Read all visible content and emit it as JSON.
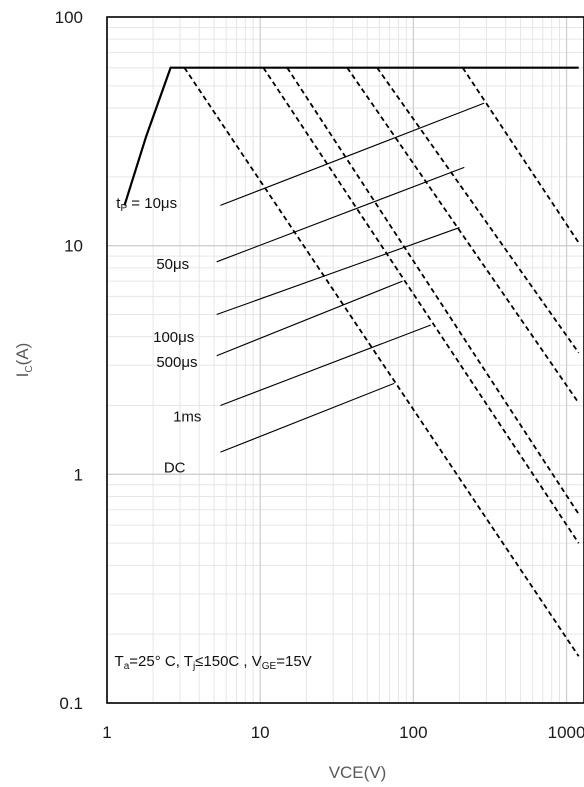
{
  "chart_data": {
    "type": "line",
    "xscale": "log",
    "yscale": "log",
    "xlim": [
      1,
      1300
    ],
    "ylim": [
      0.1,
      100
    ],
    "grid": true,
    "xlabel": "VCE(V)",
    "ylabel": {
      "main": "I",
      "sub": "C",
      "rest": "(A)"
    },
    "x_ticks": [
      {
        "value": 1,
        "label": "1"
      },
      {
        "value": 10,
        "label": "10"
      },
      {
        "value": 100,
        "label": "100"
      },
      {
        "value": 1000,
        "label": "1000"
      }
    ],
    "y_ticks": [
      {
        "value": 0.1,
        "label": "0.1"
      },
      {
        "value": 1,
        "label": "1"
      },
      {
        "value": 10,
        "label": "10"
      },
      {
        "value": 100,
        "label": "100"
      }
    ],
    "envelope": {
      "style": "solid",
      "points": [
        [
          1.3,
          15
        ],
        [
          1.8,
          30
        ],
        [
          2.6,
          60
        ],
        [
          1200,
          60
        ]
      ]
    },
    "series": [
      {
        "style": "dashed",
        "points": [
          [
            3.2,
            60
          ],
          [
            1200,
            0.16
          ]
        ]
      },
      {
        "style": "dashed",
        "points": [
          [
            10.5,
            60
          ],
          [
            1200,
            0.5
          ]
        ]
      },
      {
        "style": "dashed",
        "points": [
          [
            15,
            60
          ],
          [
            1200,
            0.67
          ]
        ]
      },
      {
        "style": "dashed",
        "points": [
          [
            37,
            60
          ],
          [
            1200,
            2.05
          ]
        ]
      },
      {
        "style": "dashed",
        "points": [
          [
            58,
            60
          ],
          [
            1200,
            3.4
          ]
        ]
      },
      {
        "style": "dashed",
        "points": [
          [
            210,
            60
          ],
          [
            1200,
            10.3
          ]
        ]
      }
    ],
    "annotations": [
      {
        "text": "t",
        "sub": "P",
        "rest": " = 10μs",
        "at": [
          1.15,
          14.6
        ],
        "leader": [
          [
            5.5,
            15
          ],
          [
            290,
            42
          ]
        ]
      },
      {
        "text": "50μs",
        "at": [
          2.1,
          7.9
        ],
        "leader": [
          [
            5.2,
            8.5
          ],
          [
            215,
            22
          ]
        ]
      },
      {
        "text": "100μs",
        "at": [
          2.0,
          3.8
        ],
        "leader": [
          [
            5.2,
            5.0
          ],
          [
            200,
            12
          ]
        ]
      },
      {
        "text": "500μs",
        "at": [
          2.1,
          2.95
        ],
        "leader": [
          [
            5.2,
            3.3
          ],
          [
            85,
            7
          ]
        ]
      },
      {
        "text": "1ms",
        "at": [
          2.7,
          1.7
        ],
        "leader": [
          [
            5.5,
            2.0
          ],
          [
            130,
            4.5
          ]
        ]
      },
      {
        "text": "DC",
        "at": [
          2.35,
          1.02
        ],
        "leader": [
          [
            5.5,
            1.25
          ],
          [
            75,
            2.5
          ]
        ]
      }
    ],
    "condition": {
      "parts": [
        {
          "t": "T"
        },
        {
          "t": "a",
          "sub": true
        },
        {
          "t": "=25°  C, T"
        },
        {
          "t": "j",
          "sub": true
        },
        {
          "t": "≤150C , V"
        },
        {
          "t": "GE",
          "sub": true
        },
        {
          "t": "=15V"
        }
      ],
      "at": [
        1.12,
        0.145
      ]
    }
  }
}
